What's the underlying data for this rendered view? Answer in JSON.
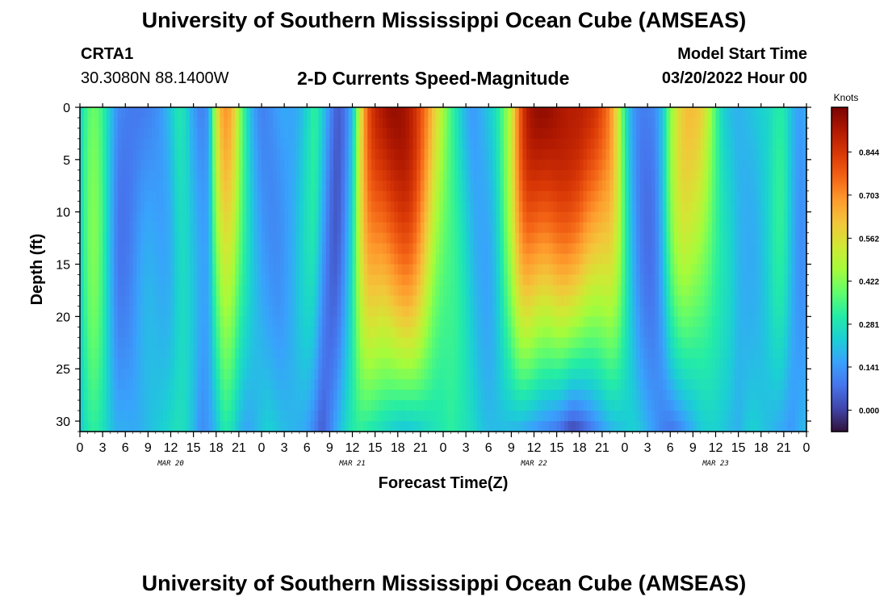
{
  "header": {
    "title": "University of Southern Mississippi Ocean Cube (AMSEAS)",
    "station": "CRTA1",
    "coords": "30.3080N  88.1400W",
    "subtitle": "2-D Currents Speed-Magnitude",
    "model_start_label": "Model Start Time",
    "model_start_value": "03/20/2022 Hour 00"
  },
  "footer": {
    "title": "University of Southern Mississippi Ocean Cube (AMSEAS)"
  },
  "chart_data": {
    "type": "heatmap",
    "xlabel": "Forecast Time(Z)",
    "ylabel": "Depth (ft)",
    "x_range": [
      0,
      96
    ],
    "y_range": [
      0,
      31
    ],
    "y_ticks": [
      0,
      5,
      10,
      15,
      20,
      25,
      30
    ],
    "x_tick_labels": [
      "0",
      "3",
      "6",
      "9",
      "12",
      "15",
      "18",
      "21",
      "0",
      "3",
      "6",
      "9",
      "12",
      "15",
      "18",
      "21",
      "0",
      "3",
      "6",
      "9",
      "12",
      "15",
      "18",
      "21",
      "0",
      "3",
      "6",
      "9",
      "12",
      "15",
      "18",
      "21",
      "0"
    ],
    "date_labels": [
      {
        "label": "MAR 20",
        "hour": 12
      },
      {
        "label": "MAR 21",
        "hour": 36
      },
      {
        "label": "MAR 22",
        "hour": 60
      },
      {
        "label": "MAR 23",
        "hour": 84
      }
    ],
    "colorbar": {
      "unit": "Knots",
      "ticks": [
        "0.000",
        "0.141",
        "0.281",
        "0.422",
        "0.562",
        "0.703",
        "0.844"
      ],
      "tick_values": [
        0.0,
        0.141,
        0.281,
        0.422,
        0.562,
        0.703,
        0.844
      ],
      "range": [
        -0.07,
        0.99
      ],
      "colors": [
        "#30123b",
        "#4145ab",
        "#4675ed",
        "#39a2fc",
        "#1bcfd4",
        "#24eca6",
        "#61fc6c",
        "#a4fc3b",
        "#d1e834",
        "#f3c63a",
        "#fe9b2d",
        "#f36315",
        "#d93806",
        "#b11901",
        "#7a0402"
      ]
    },
    "series_profiles": {
      "hours": [
        0,
        1,
        2,
        3,
        4,
        5,
        6,
        7,
        8,
        9,
        10,
        11,
        12,
        13,
        14,
        15,
        16,
        17,
        18,
        19,
        20,
        21,
        22,
        23,
        24,
        25,
        26,
        27,
        28,
        29,
        30,
        31,
        32,
        33,
        34,
        35,
        36,
        37,
        38,
        39,
        40,
        41,
        42,
        43,
        44,
        45,
        46,
        47,
        48,
        49,
        50,
        51,
        52,
        53,
        54,
        55,
        56,
        57,
        58,
        59,
        60,
        61,
        62,
        63,
        64,
        65,
        66,
        67,
        68,
        69,
        70,
        71,
        72,
        73,
        74,
        75,
        76,
        77,
        78,
        79,
        80,
        81,
        82,
        83,
        84,
        85,
        86,
        87,
        88,
        89,
        90,
        91,
        92,
        93,
        94,
        95,
        96
      ],
      "surface": [
        0.24,
        0.36,
        0.4,
        0.33,
        0.22,
        0.12,
        0.1,
        0.09,
        0.09,
        0.1,
        0.12,
        0.16,
        0.22,
        0.3,
        0.26,
        0.15,
        0.1,
        0.14,
        0.52,
        0.7,
        0.66,
        0.45,
        0.28,
        0.15,
        0.1,
        0.12,
        0.15,
        0.17,
        0.16,
        0.18,
        0.25,
        0.33,
        0.24,
        0.12,
        0.04,
        0.08,
        0.2,
        0.52,
        0.78,
        0.88,
        0.92,
        0.95,
        0.95,
        0.93,
        0.88,
        0.8,
        0.7,
        0.58,
        0.46,
        0.35,
        0.26,
        0.18,
        0.14,
        0.18,
        0.22,
        0.28,
        0.38,
        0.52,
        0.75,
        0.9,
        0.95,
        0.96,
        0.95,
        0.93,
        0.91,
        0.9,
        0.9,
        0.88,
        0.86,
        0.8,
        0.72,
        0.55,
        0.3,
        0.15,
        0.1,
        0.1,
        0.12,
        0.22,
        0.42,
        0.55,
        0.62,
        0.63,
        0.6,
        0.5,
        0.35,
        0.24,
        0.2,
        0.18,
        0.2,
        0.22,
        0.24,
        0.25,
        0.3,
        0.3,
        0.2,
        0.15,
        0.18
      ],
      "bottom": [
        0.22,
        0.3,
        0.32,
        0.28,
        0.22,
        0.18,
        0.18,
        0.17,
        0.18,
        0.2,
        0.22,
        0.24,
        0.26,
        0.28,
        0.26,
        0.2,
        0.12,
        0.14,
        0.2,
        0.3,
        0.28,
        0.2,
        0.16,
        0.18,
        0.22,
        0.24,
        0.22,
        0.2,
        0.19,
        0.18,
        0.16,
        0.1,
        0.04,
        0.1,
        0.18,
        0.25,
        0.3,
        0.32,
        0.3,
        0.28,
        0.26,
        0.24,
        0.22,
        0.21,
        0.22,
        0.24,
        0.26,
        0.28,
        0.3,
        0.32,
        0.3,
        0.28,
        0.26,
        0.22,
        0.2,
        0.2,
        0.2,
        0.19,
        0.18,
        0.16,
        0.14,
        0.12,
        0.1,
        0.08,
        0.04,
        0.0,
        0.02,
        0.06,
        0.1,
        0.14,
        0.18,
        0.2,
        0.22,
        0.24,
        0.22,
        0.18,
        0.14,
        0.1,
        0.08,
        0.1,
        0.14,
        0.18,
        0.22,
        0.24,
        0.24,
        0.22,
        0.2,
        0.18,
        0.22,
        0.24,
        0.22,
        0.2,
        0.18,
        0.16,
        0.14,
        0.18,
        0.2
      ]
    }
  }
}
